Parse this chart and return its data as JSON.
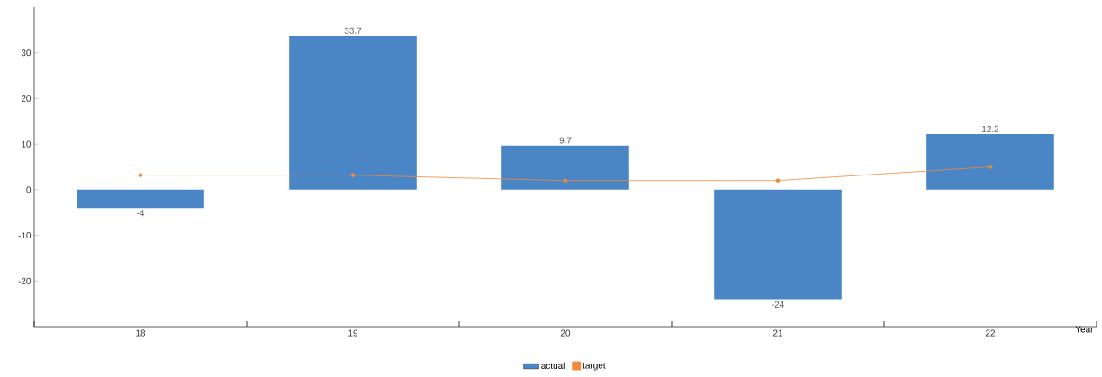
{
  "chart_data": {
    "type": "bar",
    "xlabel": "Year",
    "categories": [
      "18",
      "19",
      "20",
      "21",
      "22"
    ],
    "series": [
      {
        "name": "actual",
        "color": "#4a86c6",
        "values": [
          -4,
          33.7,
          9.7,
          -24,
          12.2
        ],
        "value_labels": [
          "-4",
          "33.7",
          "9.7",
          "-24",
          "12.2"
        ]
      },
      {
        "name": "target",
        "type": "line",
        "color": "#f08a3a",
        "marker": "circle",
        "values": [
          3.2,
          3.2,
          2,
          2,
          5
        ]
      }
    ],
    "ylim": [
      -30,
      40
    ],
    "yticks": [
      -20,
      -10,
      0,
      10,
      20,
      30
    ],
    "legend": "bottom",
    "grid": false
  }
}
